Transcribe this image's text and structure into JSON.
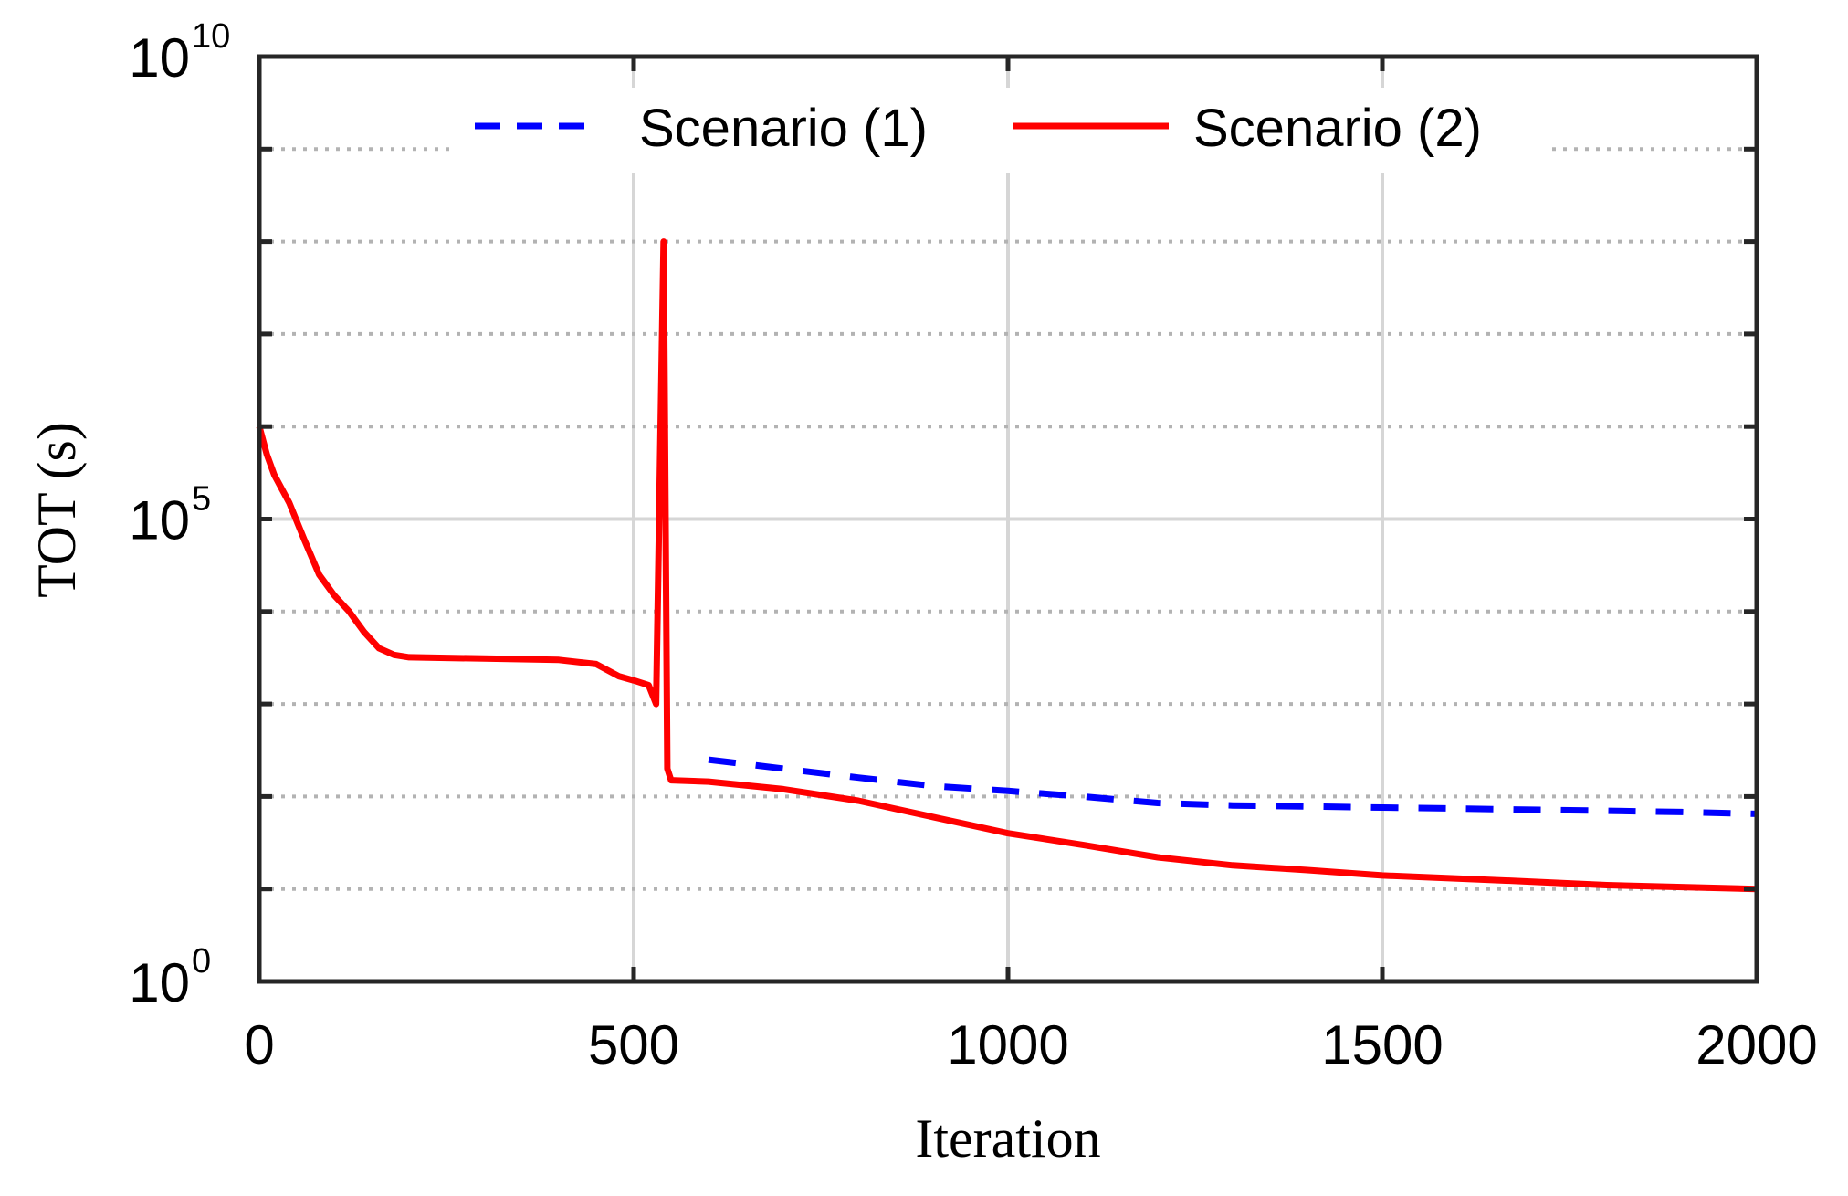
{
  "chart_data": {
    "type": "line",
    "xlabel": "Iteration",
    "ylabel": "TOT (s)",
    "xlim": [
      0,
      2000
    ],
    "ylim": [
      1,
      10000000000
    ],
    "y_scale": "log",
    "x_ticks": [
      0,
      500,
      1000,
      1500,
      2000
    ],
    "x_tick_labels": [
      "0",
      "500",
      "1000",
      "1500",
      "2000"
    ],
    "y_ticks": [
      {
        "base": "10",
        "exp": "0",
        "value": 1
      },
      {
        "base": "10",
        "exp": "5",
        "value": 100000
      },
      {
        "base": "10",
        "exp": "10",
        "value": 10000000000
      }
    ],
    "grid": true,
    "legend": "top",
    "colors": {
      "scenario1": "#0000ff",
      "scenario2": "#ff0000"
    },
    "series": [
      {
        "name": "Scenario (1)",
        "style": "dashed",
        "x": [
          600,
          700,
          800,
          900,
          1000,
          1100,
          1200,
          1300,
          1400,
          1500,
          1600,
          1700,
          1800,
          1900,
          2000
        ],
        "y": [
          250,
          200,
          160,
          130,
          115,
          100,
          85,
          80,
          78,
          76,
          74,
          72,
          70,
          68,
          65
        ]
      },
      {
        "name": "Scenario (2)",
        "style": "solid",
        "x": [
          0,
          10,
          20,
          40,
          60,
          80,
          100,
          120,
          140,
          160,
          180,
          200,
          300,
          400,
          450,
          480,
          500,
          520,
          530,
          540,
          545,
          550,
          600,
          700,
          800,
          900,
          1000,
          1100,
          1200,
          1300,
          1400,
          1500,
          1600,
          1700,
          1800,
          1900,
          2000
        ],
        "y": [
          1000000,
          500000,
          300000,
          150000,
          60000,
          25000,
          15000,
          10000,
          6000,
          4000,
          3400,
          3200,
          3100,
          3000,
          2700,
          2000,
          1800,
          1600,
          1000,
          100000000,
          200,
          150,
          145,
          120,
          90,
          60,
          40,
          30,
          22,
          18,
          16,
          14,
          13,
          12,
          11,
          10.5,
          10
        ]
      }
    ]
  }
}
